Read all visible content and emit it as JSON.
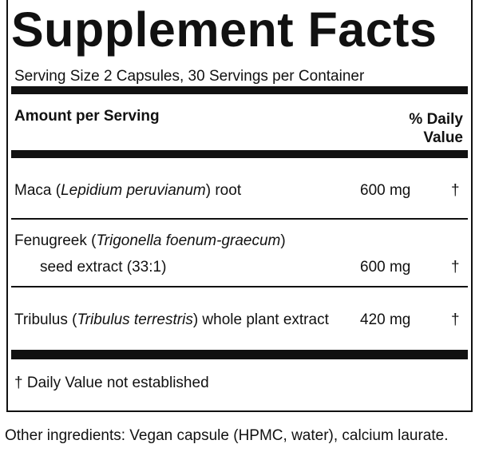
{
  "title": "Supplement Facts",
  "serving": "Serving Size 2 Capsules, 30 Servings per Container",
  "header": {
    "amount": "Amount per Serving",
    "daily_value_1": "% Daily",
    "daily_value_2": "Value"
  },
  "rows": [
    {
      "lines": [
        [
          "Maca (",
          "Lepidium peruvianum",
          ") root"
        ]
      ],
      "amount": "600 mg",
      "daily_value": "†"
    },
    {
      "lines": [
        [
          "Fenugreek (",
          "Trigonella foenum-graecum",
          ")"
        ],
        [
          "seed extract (33:1)"
        ]
      ],
      "amount": "600 mg",
      "daily_value": "†"
    },
    {
      "lines": [
        [
          "Tribulus (",
          "Tribulus terrestris",
          ") whole plant extract"
        ]
      ],
      "amount": "420 mg",
      "daily_value": "†"
    }
  ],
  "footnote": "† Daily Value not established",
  "other_ingredients": "Other ingredients: Vegan capsule (HPMC, water), calcium laurate."
}
